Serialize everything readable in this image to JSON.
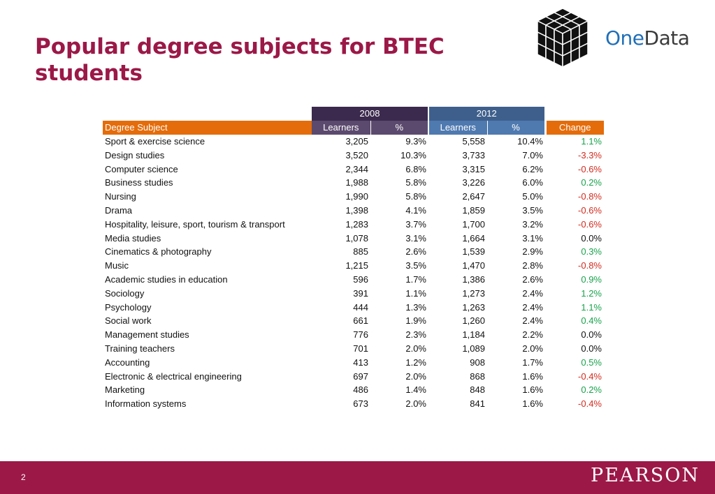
{
  "slide": {
    "title": "Popular degree subjects for BTEC students",
    "page_number": "2"
  },
  "logo": {
    "text_one": "One",
    "text_data": "Data",
    "icon": "cube-icon"
  },
  "brand": {
    "footer_text": "PEARSON",
    "footer_color": "#9b1847",
    "title_color": "#9b1847"
  },
  "table": {
    "groups": [
      "2008",
      "2012"
    ],
    "headers": {
      "subject": "Degree Subject",
      "learners_2008": "Learners",
      "pct_2008": "%",
      "learners_2012": "Learners",
      "pct_2012": "%",
      "change": "Change"
    },
    "rows": [
      {
        "subject": "Sport & exercise science",
        "l08": "3,205",
        "p08": "9.3%",
        "l12": "5,558",
        "p12": "10.4%",
        "change": "1.1%",
        "dir": "pos"
      },
      {
        "subject": "Design studies",
        "l08": "3,520",
        "p08": "10.3%",
        "l12": "3,733",
        "p12": "7.0%",
        "change": "-3.3%",
        "dir": "neg"
      },
      {
        "subject": "Computer science",
        "l08": "2,344",
        "p08": "6.8%",
        "l12": "3,315",
        "p12": "6.2%",
        "change": "-0.6%",
        "dir": "neg"
      },
      {
        "subject": "Business studies",
        "l08": "1,988",
        "p08": "5.8%",
        "l12": "3,226",
        "p12": "6.0%",
        "change": "0.2%",
        "dir": "pos"
      },
      {
        "subject": "Nursing",
        "l08": "1,990",
        "p08": "5.8%",
        "l12": "2,647",
        "p12": "5.0%",
        "change": "-0.8%",
        "dir": "neg"
      },
      {
        "subject": "Drama",
        "l08": "1,398",
        "p08": "4.1%",
        "l12": "1,859",
        "p12": "3.5%",
        "change": "-0.6%",
        "dir": "neg"
      },
      {
        "subject": "Hospitality, leisure, sport, tourism & transport",
        "l08": "1,283",
        "p08": "3.7%",
        "l12": "1,700",
        "p12": "3.2%",
        "change": "-0.6%",
        "dir": "neg"
      },
      {
        "subject": "Media studies",
        "l08": "1,078",
        "p08": "3.1%",
        "l12": "1,664",
        "p12": "3.1%",
        "change": "0.0%",
        "dir": "zero"
      },
      {
        "subject": "Cinematics & photography",
        "l08": "885",
        "p08": "2.6%",
        "l12": "1,539",
        "p12": "2.9%",
        "change": "0.3%",
        "dir": "pos"
      },
      {
        "subject": "Music",
        "l08": "1,215",
        "p08": "3.5%",
        "l12": "1,470",
        "p12": "2.8%",
        "change": "-0.8%",
        "dir": "neg"
      },
      {
        "subject": "Academic studies in education",
        "l08": "596",
        "p08": "1.7%",
        "l12": "1,386",
        "p12": "2.6%",
        "change": "0.9%",
        "dir": "pos"
      },
      {
        "subject": "Sociology",
        "l08": "391",
        "p08": "1.1%",
        "l12": "1,273",
        "p12": "2.4%",
        "change": "1.2%",
        "dir": "pos"
      },
      {
        "subject": "Psychology",
        "l08": "444",
        "p08": "1.3%",
        "l12": "1,263",
        "p12": "2.4%",
        "change": "1.1%",
        "dir": "pos"
      },
      {
        "subject": "Social work",
        "l08": "661",
        "p08": "1.9%",
        "l12": "1,260",
        "p12": "2.4%",
        "change": "0.4%",
        "dir": "pos"
      },
      {
        "subject": "Management studies",
        "l08": "776",
        "p08": "2.3%",
        "l12": "1,184",
        "p12": "2.2%",
        "change": "0.0%",
        "dir": "zero"
      },
      {
        "subject": "Training teachers",
        "l08": "701",
        "p08": "2.0%",
        "l12": "1,089",
        "p12": "2.0%",
        "change": "0.0%",
        "dir": "zero"
      },
      {
        "subject": "Accounting",
        "l08": "413",
        "p08": "1.2%",
        "l12": "908",
        "p12": "1.7%",
        "change": "0.5%",
        "dir": "pos"
      },
      {
        "subject": "Electronic & electrical engineering",
        "l08": "697",
        "p08": "2.0%",
        "l12": "868",
        "p12": "1.6%",
        "change": "-0.4%",
        "dir": "neg"
      },
      {
        "subject": "Marketing",
        "l08": "486",
        "p08": "1.4%",
        "l12": "848",
        "p12": "1.6%",
        "change": "0.2%",
        "dir": "pos"
      },
      {
        "subject": "Information systems",
        "l08": "673",
        "p08": "2.0%",
        "l12": "841",
        "p12": "1.6%",
        "change": "-0.4%",
        "dir": "neg"
      }
    ]
  }
}
